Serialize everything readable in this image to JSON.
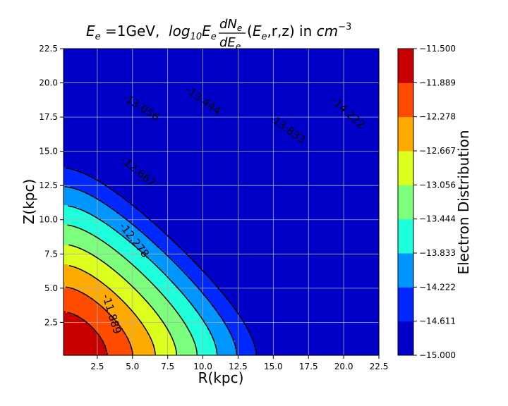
{
  "chart_data": {
    "type": "heatmap",
    "subtype": "filled-contour",
    "title": {
      "prefix": "E",
      "prefix_sub": "e",
      "mid": " =1GeV,  ",
      "log": "log",
      "log_sub": "10",
      "E": "E",
      "E_sub": "e",
      "num": "dN",
      "num_sub": "e",
      "den": "dE",
      "den_sub": "e",
      "args_open": "(",
      "args_E": "E",
      "args_E_sub": "e",
      "args_rest": ",r,z) in ",
      "unit": "cm",
      "unit_sup": "−3"
    },
    "xlabel": "R(kpc)",
    "ylabel": "Z(kpc)",
    "colorbar_label": "Electron Distribution",
    "xlim": [
      0.1,
      22.5
    ],
    "ylim": [
      0.1,
      22.5
    ],
    "xticks": [
      2.5,
      5.0,
      7.5,
      10.0,
      12.5,
      15.0,
      17.5,
      20.0,
      22.5
    ],
    "yticks": [
      2.5,
      5.0,
      7.5,
      10.0,
      12.5,
      15.0,
      17.5,
      20.0,
      22.5
    ],
    "grid": true,
    "levels": [
      -15.0,
      -14.611,
      -14.222,
      -13.833,
      -13.444,
      -13.056,
      -12.667,
      -12.278,
      -11.889,
      -11.5
    ],
    "colors": [
      "#0000c8",
      "#0028ff",
      "#0096ff",
      "#1effdc",
      "#7cff7c",
      "#dcff1e",
      "#ffaa00",
      "#ff4b00",
      "#c80000"
    ],
    "field": {
      "form": "log10 f = -11.5 - A*R^2/(R+B) - C*Z^2/(Z+D)",
      "A": 0.3048,
      "B": 4.84,
      "C": 0.3144,
      "D": 5.41
    },
    "contour_labels": [
      {
        "text": "-11.889",
        "x": 3.5,
        "y": 3.1,
        "angle": 73
      },
      {
        "text": "-12.278",
        "x": 5.1,
        "y": 8.5,
        "angle": 52
      },
      {
        "text": "-12.667",
        "x": 5.4,
        "y": 13.5,
        "angle": 40
      },
      {
        "text": "-13.056",
        "x": 5.6,
        "y": 18.2,
        "angle": 33
      },
      {
        "text": "-13.444",
        "x": 10.0,
        "y": 18.7,
        "angle": 36
      },
      {
        "text": "-13.833",
        "x": 16.0,
        "y": 16.6,
        "angle": 36
      },
      {
        "text": "-14.222",
        "x": 20.3,
        "y": 17.8,
        "angle": 42
      }
    ]
  }
}
